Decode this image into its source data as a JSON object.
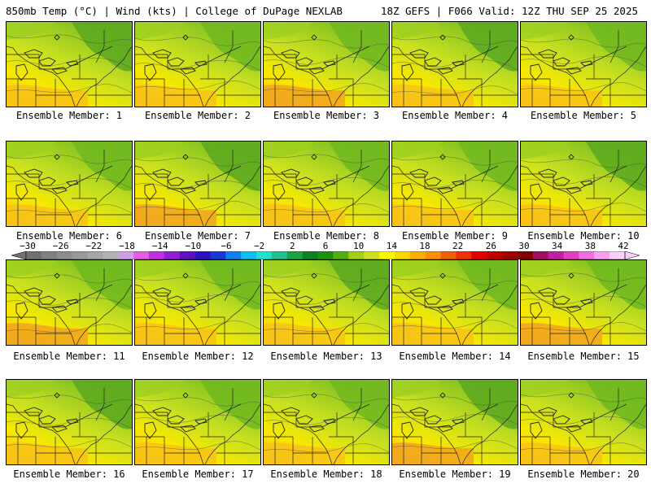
{
  "header": {
    "left": "850mb Temp (°C) | Wind (kts) | College of DuPage NEXLAB",
    "right": "18Z GEFS | F066 Valid: 12Z THU SEP 25 2025"
  },
  "members": [
    {
      "label": "Ensemble Member: 1"
    },
    {
      "label": "Ensemble Member: 2"
    },
    {
      "label": "Ensemble Member: 3"
    },
    {
      "label": "Ensemble Member: 4"
    },
    {
      "label": "Ensemble Member: 5"
    },
    {
      "label": "Ensemble Member: 6"
    },
    {
      "label": "Ensemble Member: 7"
    },
    {
      "label": "Ensemble Member: 8"
    },
    {
      "label": "Ensemble Member: 9"
    },
    {
      "label": "Ensemble Member: 10"
    },
    {
      "label": "Ensemble Member: 11"
    },
    {
      "label": "Ensemble Member: 12"
    },
    {
      "label": "Ensemble Member: 13"
    },
    {
      "label": "Ensemble Member: 14"
    },
    {
      "label": "Ensemble Member: 15"
    },
    {
      "label": "Ensemble Member: 16"
    },
    {
      "label": "Ensemble Member: 17"
    },
    {
      "label": "Ensemble Member: 18"
    },
    {
      "label": "Ensemble Member: 19"
    },
    {
      "label": "Ensemble Member: 20"
    }
  ],
  "colorbar": {
    "labels": [
      "−30",
      "−26",
      "−22",
      "−18",
      "−14",
      "−10",
      "−6",
      "−2",
      "2",
      "6",
      "10",
      "14",
      "18",
      "22",
      "26",
      "30",
      "34",
      "38",
      "42"
    ],
    "colors": [
      "#707070",
      "#808080",
      "#8c8c8c",
      "#999999",
      "#a6a6a6",
      "#b3b3b3",
      "#cfa0e8",
      "#e060e0",
      "#c030e0",
      "#9020d0",
      "#6010c0",
      "#3010c0",
      "#1838d8",
      "#1080f0",
      "#10c0f0",
      "#20e0d0",
      "#20c090",
      "#20a040",
      "#108020",
      "#209010",
      "#50b010",
      "#a0d010",
      "#d0e020",
      "#f8f800",
      "#f8d800",
      "#f8b000",
      "#f89000",
      "#f06000",
      "#f03000",
      "#e00000",
      "#c00000",
      "#a00000",
      "#800000",
      "#a01060",
      "#c020a0",
      "#e040c0",
      "#f070e0",
      "#f8a0f0",
      "#f8d0f8"
    ]
  }
}
